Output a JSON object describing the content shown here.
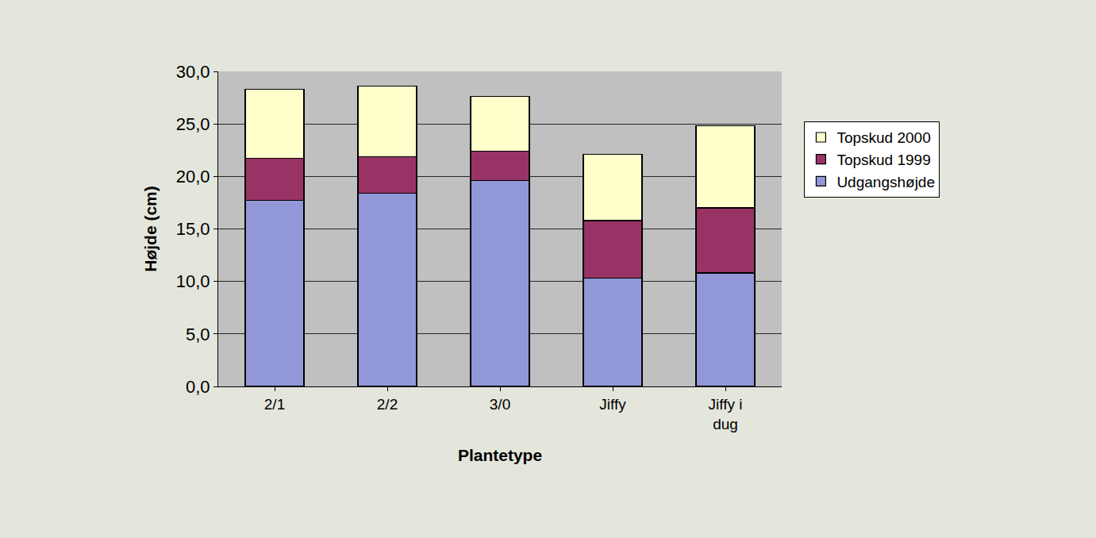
{
  "chart_data": {
    "type": "bar",
    "stacked": true,
    "categories": [
      "2/1",
      "2/2",
      "3/0",
      "Jiffy",
      "Jiffy i dug"
    ],
    "series": [
      {
        "name": "Udgangshøjde",
        "color": "#9297d8",
        "values": [
          17.7,
          18.4,
          19.6,
          10.3,
          10.8
        ]
      },
      {
        "name": "Topskud 1999",
        "color": "#993366",
        "values": [
          4.0,
          3.5,
          2.8,
          5.5,
          6.2
        ]
      },
      {
        "name": "Topskud 2000",
        "color": "#ffffcc",
        "values": [
          6.6,
          6.7,
          5.2,
          6.3,
          7.8
        ]
      }
    ],
    "x_label": "Plantetype",
    "y_label": "Højde (cm)",
    "ylim": [
      0,
      30
    ],
    "yticks": [
      {
        "value": 0,
        "label": "0,0"
      },
      {
        "value": 5,
        "label": "5,0"
      },
      {
        "value": 10,
        "label": "10,0"
      },
      {
        "value": 15,
        "label": "15,0"
      },
      {
        "value": 20,
        "label": "20,0"
      },
      {
        "value": 25,
        "label": "25,0"
      },
      {
        "value": 30,
        "label": "30,0"
      }
    ],
    "grid": true,
    "legend": "right"
  }
}
